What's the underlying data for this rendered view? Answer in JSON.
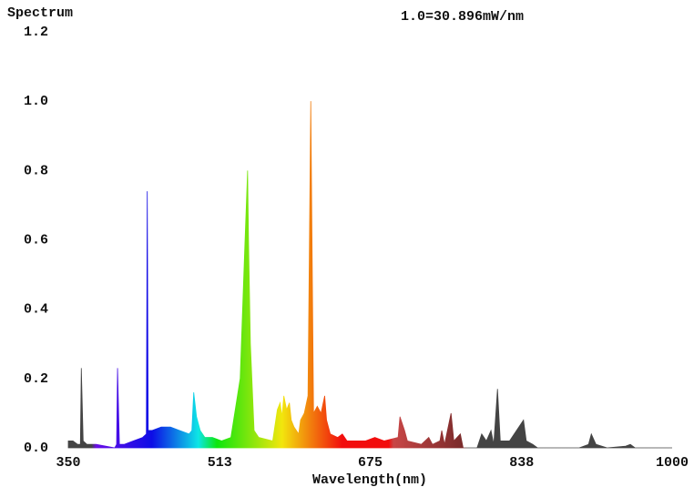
{
  "chart_data": {
    "type": "area",
    "title": "Spectrum",
    "annotation": "1.0=30.896mW/nm",
    "x_label": "Wavelength(nm)",
    "x": [
      350,
      355,
      360,
      363,
      364,
      366,
      370,
      380,
      400,
      402,
      403,
      405,
      410,
      420,
      430,
      434,
      435,
      436,
      440,
      450,
      460,
      470,
      480,
      483,
      485,
      488,
      492,
      497,
      505,
      515,
      525,
      535,
      540,
      543,
      544,
      546,
      550,
      555,
      570,
      575,
      578,
      580,
      582,
      585,
      588,
      590,
      593,
      598,
      600,
      604,
      608,
      611,
      614,
      618,
      622,
      626,
      628,
      632,
      640,
      645,
      650,
      660,
      670,
      680,
      690,
      705,
      707,
      712,
      715,
      730,
      738,
      742,
      750,
      752,
      755,
      762,
      765,
      772,
      775,
      790,
      795,
      800,
      805,
      808,
      812,
      815,
      825,
      840,
      843,
      850,
      855,
      900,
      910,
      913,
      918,
      930,
      950,
      955,
      960,
      1000
    ],
    "values": [
      0.02,
      0.02,
      0.01,
      0.01,
      0.23,
      0.02,
      0.01,
      0.01,
      0,
      0.01,
      0.23,
      0.01,
      0.01,
      0.02,
      0.03,
      0.04,
      0.74,
      0.05,
      0.05,
      0.06,
      0.06,
      0.05,
      0.04,
      0.05,
      0.16,
      0.09,
      0.05,
      0.03,
      0.03,
      0.02,
      0.03,
      0.2,
      0.58,
      0.8,
      0.6,
      0.3,
      0.05,
      0.03,
      0.02,
      0.11,
      0.13,
      0.09,
      0.15,
      0.11,
      0.13,
      0.08,
      0.06,
      0.04,
      0.08,
      0.1,
      0.15,
      1.0,
      0.1,
      0.12,
      0.1,
      0.15,
      0.08,
      0.04,
      0.03,
      0.04,
      0.02,
      0.02,
      0.02,
      0.03,
      0.02,
      0.03,
      0.09,
      0.05,
      0.02,
      0.01,
      0.03,
      0.01,
      0.02,
      0.05,
      0.01,
      0.1,
      0.02,
      0.04,
      0,
      0,
      0.04,
      0.02,
      0.05,
      0.01,
      0.17,
      0.02,
      0.02,
      0.08,
      0.02,
      0.01,
      0,
      0,
      0.01,
      0.04,
      0.01,
      0,
      0.005,
      0.01,
      0,
      0
    ],
    "xlim": [
      350,
      1000
    ],
    "xticks": [
      350,
      513,
      675,
      838,
      1000
    ],
    "ylim": [
      0,
      1.2
    ],
    "yticks": [
      {
        "value": 0,
        "label": "0.0"
      },
      0.2,
      0.4,
      0.6,
      0.8,
      {
        "value": 1,
        "label": "1.0"
      },
      1.2
    ],
    "grid": false
  }
}
